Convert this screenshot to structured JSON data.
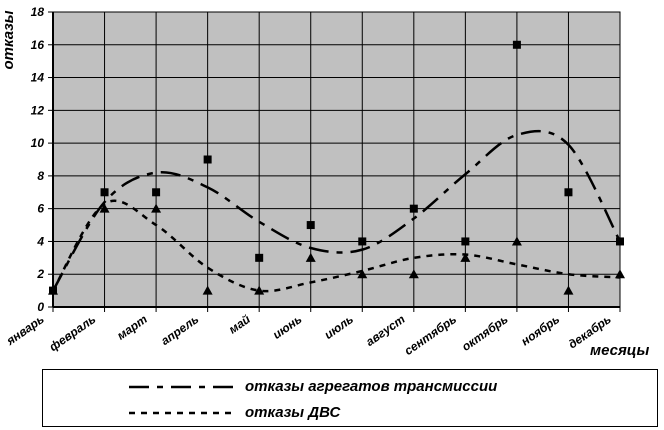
{
  "chart_data": {
    "type": "line",
    "ylabel": "отказы",
    "xlabel": "месяцы",
    "categories": [
      "январь",
      "февраль",
      "март",
      "апрель",
      "май",
      "июнь",
      "июль",
      "август",
      "сентябрь",
      "октябрь",
      "ноябрь",
      "декабрь"
    ],
    "ylim": [
      0,
      18
    ],
    "yticks": [
      0,
      2,
      4,
      6,
      8,
      10,
      12,
      14,
      16,
      18
    ],
    "grid": true,
    "plot_background": "#c0c0c0",
    "legend_position": "bottom",
    "series": [
      {
        "name": "отказы агрегатов трансмиссии",
        "marker": "square",
        "line_style": "long-dash",
        "values": [
          1,
          7,
          7,
          9,
          3,
          5,
          4,
          6,
          4,
          16,
          7,
          4
        ],
        "trend": [
          1,
          6.4,
          8.2,
          7.3,
          5.2,
          3.6,
          3.5,
          5.4,
          8.1,
          10.5,
          9.9,
          4
        ]
      },
      {
        "name": "отказы ДВС",
        "marker": "triangle",
        "line_style": "short-dash",
        "values": [
          1,
          6,
          6,
          1,
          1,
          3,
          2,
          2,
          3,
          4,
          1,
          2
        ],
        "trend": [
          1,
          6.3,
          5.0,
          2.4,
          1.0,
          1.5,
          2.2,
          3.0,
          3.2,
          2.6,
          2.0,
          1.8
        ]
      }
    ]
  }
}
